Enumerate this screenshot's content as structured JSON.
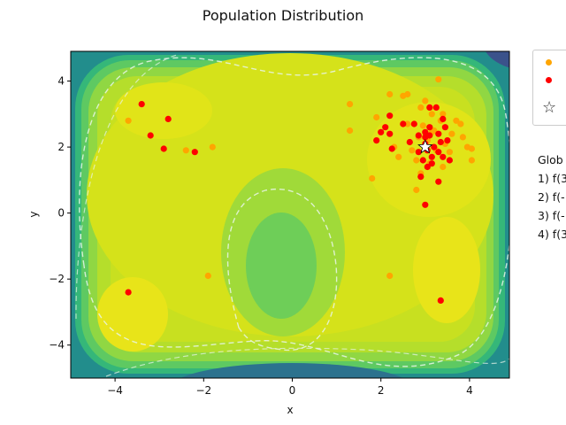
{
  "chart_data": {
    "type": "scatter",
    "title": "Population Distribution",
    "xlabel": "x",
    "ylabel": "y",
    "xlim": [
      -5,
      4.9
    ],
    "ylim": [
      -5,
      4.9
    ],
    "x_ticks": [
      -4,
      -2,
      0,
      2,
      4
    ],
    "y_ticks": [
      -4,
      -2,
      0,
      2,
      4
    ],
    "x_tick_labels": [
      "−4",
      "−2",
      "0",
      "2",
      "4"
    ],
    "y_tick_labels": [
      "−4",
      "−2",
      "0",
      "2",
      "4"
    ],
    "background": "filled contour of objective function (viridis colormap) with white dashed contour lines",
    "legend_placement": "outside right, top",
    "series": [
      {
        "color": "#FFA500",
        "marker": "circle",
        "points": [
          [
            -3.7,
            2.8
          ],
          [
            -2.4,
            1.9
          ],
          [
            -1.8,
            2.0
          ],
          [
            -1.9,
            -1.9
          ],
          [
            1.3,
            3.3
          ],
          [
            1.3,
            2.5
          ],
          [
            1.8,
            1.05
          ],
          [
            1.9,
            2.9
          ],
          [
            2.2,
            3.6
          ],
          [
            2.2,
            -1.9
          ],
          [
            2.3,
            2.0
          ],
          [
            2.4,
            1.7
          ],
          [
            2.5,
            3.55
          ],
          [
            2.6,
            3.6
          ],
          [
            2.6,
            2.7
          ],
          [
            2.7,
            1.9
          ],
          [
            2.8,
            1.6
          ],
          [
            2.8,
            0.7
          ],
          [
            2.85,
            2.3
          ],
          [
            2.9,
            3.2
          ],
          [
            2.9,
            1.2
          ],
          [
            3.0,
            3.4
          ],
          [
            3.05,
            2.2
          ],
          [
            3.1,
            1.5
          ],
          [
            3.15,
            3.0
          ],
          [
            3.2,
            2.5
          ],
          [
            3.25,
            1.9
          ],
          [
            3.3,
            4.05
          ],
          [
            3.35,
            2.8
          ],
          [
            3.4,
            1.4
          ],
          [
            3.45,
            2.1
          ],
          [
            3.55,
            1.85
          ],
          [
            3.6,
            2.4
          ],
          [
            3.7,
            2.8
          ],
          [
            3.8,
            2.7
          ],
          [
            3.85,
            2.3
          ],
          [
            3.95,
            2.0
          ],
          [
            4.05,
            1.95
          ],
          [
            4.05,
            1.6
          ],
          [
            3.4,
            3.0
          ],
          [
            2.95,
            2.65
          ],
          [
            3.15,
            2.45
          ]
        ]
      },
      {
        "color": "#FF0000",
        "marker": "circle",
        "points": [
          [
            -3.4,
            3.3
          ],
          [
            -2.8,
            2.85
          ],
          [
            -3.2,
            2.35
          ],
          [
            -2.9,
            1.95
          ],
          [
            -2.2,
            1.85
          ],
          [
            -3.7,
            -2.4
          ],
          [
            1.9,
            2.2
          ],
          [
            2.0,
            2.45
          ],
          [
            2.1,
            2.6
          ],
          [
            2.2,
            2.95
          ],
          [
            2.2,
            2.4
          ],
          [
            2.25,
            1.95
          ],
          [
            2.5,
            2.7
          ],
          [
            2.65,
            2.15
          ],
          [
            2.75,
            2.7
          ],
          [
            2.85,
            2.35
          ],
          [
            2.85,
            1.85
          ],
          [
            2.9,
            1.1
          ],
          [
            2.95,
            1.6
          ],
          [
            3.0,
            2.3
          ],
          [
            3.0,
            2.45
          ],
          [
            3.0,
            2.1
          ],
          [
            3.05,
            1.9
          ],
          [
            3.05,
            1.4
          ],
          [
            3.1,
            3.2
          ],
          [
            3.1,
            2.6
          ],
          [
            3.15,
            1.7
          ],
          [
            3.15,
            1.5
          ],
          [
            3.2,
            2.0
          ],
          [
            3.25,
            3.2
          ],
          [
            3.3,
            2.4
          ],
          [
            3.3,
            1.85
          ],
          [
            3.35,
            2.15
          ],
          [
            3.4,
            2.85
          ],
          [
            3.4,
            1.7
          ],
          [
            3.45,
            2.6
          ],
          [
            3.5,
            2.2
          ],
          [
            3.55,
            1.6
          ],
          [
            3.3,
            0.95
          ],
          [
            3.0,
            0.25
          ],
          [
            3.35,
            -2.65
          ],
          [
            3.1,
            2.35
          ]
        ]
      },
      {
        "color": "#ffffff",
        "marker": "star",
        "points": [
          [
            3.0,
            2.0
          ]
        ]
      }
    ],
    "global_text_lines": [
      "Glob",
      "1) f(3",
      "2) f(-",
      "3) f(-",
      "4) f(3"
    ]
  }
}
